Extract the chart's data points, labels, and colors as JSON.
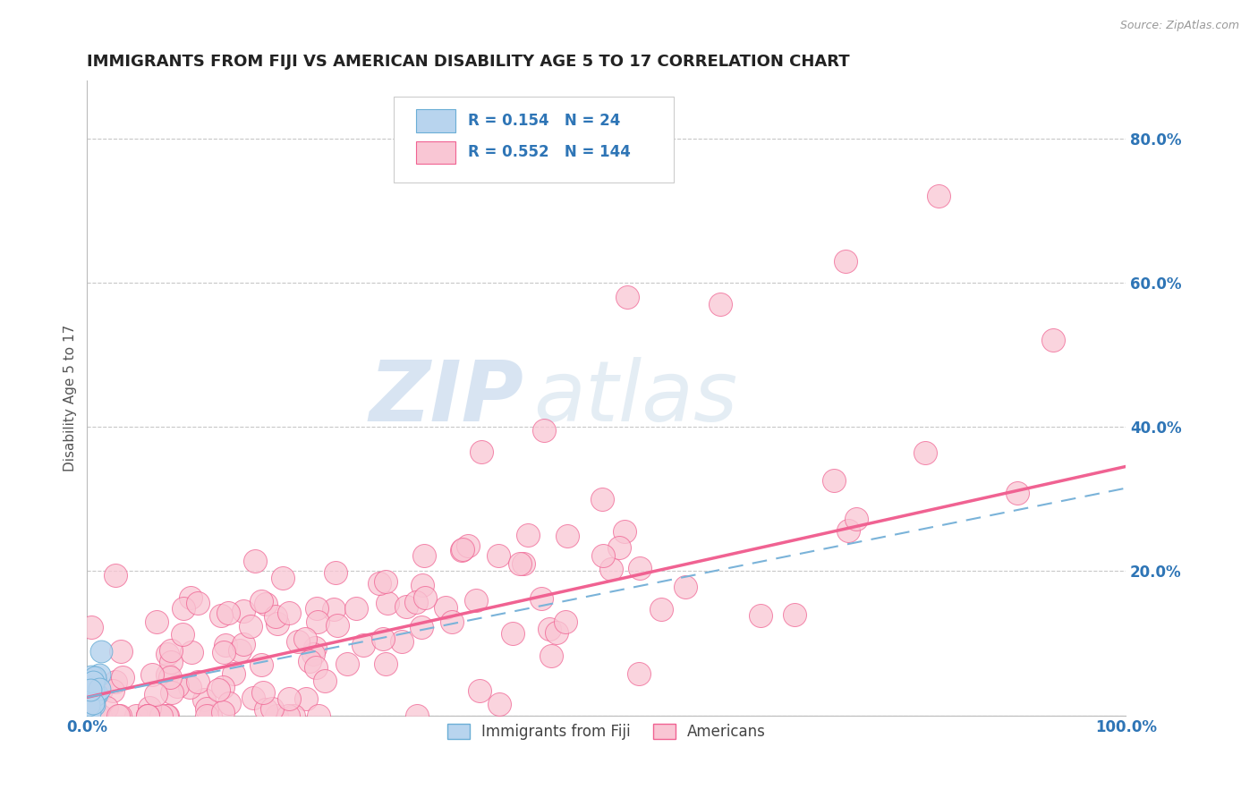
{
  "title": "IMMIGRANTS FROM FIJI VS AMERICAN DISABILITY AGE 5 TO 17 CORRELATION CHART",
  "source": "Source: ZipAtlas.com",
  "ylabel": "Disability Age 5 to 17",
  "xlim": [
    0,
    1.0
  ],
  "ylim": [
    0,
    0.88
  ],
  "fiji_R": 0.154,
  "fiji_N": 24,
  "americans_R": 0.552,
  "americans_N": 144,
  "fiji_color": "#b8d4ee",
  "fiji_edge_color": "#6baed6",
  "americans_color": "#f9c6d4",
  "americans_edge_color": "#f06292",
  "fiji_line_color": "#7ab3d9",
  "americans_line_color": "#f06292",
  "watermark_zip": "ZIP",
  "watermark_atlas": "atlas",
  "background_color": "#ffffff",
  "grid_color": "#c8c8c8",
  "legend_color": "#2e75b6",
  "axis_label_color": "#555555",
  "title_color": "#222222",
  "source_color": "#999999",
  "tick_color": "#2e75b6",
  "americans_line_start_y": 0.025,
  "americans_line_end_y": 0.345,
  "fiji_line_start_y": 0.025,
  "fiji_line_end_y": 0.315
}
